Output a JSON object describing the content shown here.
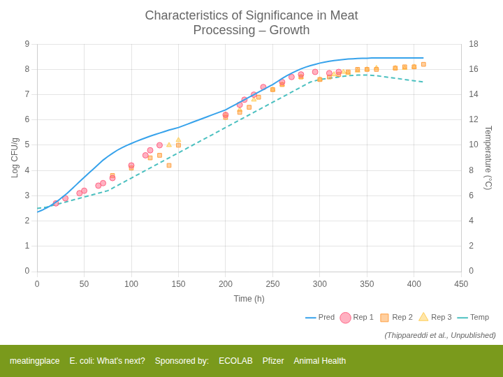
{
  "chart_data": {
    "type": "scatter",
    "title": [
      "Characteristics of Significance in Meat",
      "Processing – Growth"
    ],
    "subtitle": "(Thippareddi et al., Unpublished)",
    "annotations": [
      "meatingplace",
      "E. coli: What's next?",
      "Sponsored by:",
      "ECOLAB",
      "Pfizer",
      "Animal Health"
    ],
    "x_label": "Time (h)",
    "y_label": "Log CFU/g",
    "y2_label": "Temperature (°C)",
    "xlim": [
      0,
      450
    ],
    "xticks": [
      0,
      50,
      100,
      150,
      200,
      250,
      300,
      350,
      400,
      450
    ],
    "ylim": [
      0,
      9
    ],
    "yticks": [
      0,
      1,
      2,
      3,
      4,
      5,
      6,
      7,
      8,
      9
    ],
    "y2lim": [
      0,
      18
    ],
    "y2ticks": [
      0,
      2,
      4,
      6,
      8,
      10,
      12,
      14,
      16,
      18
    ],
    "grid": true,
    "legend": "lower right",
    "series": [
      {
        "name": "Pred",
        "type": "line",
        "line_style": "solid",
        "x": [
          0,
          2,
          4,
          6,
          8,
          10,
          12,
          14,
          16,
          18,
          20,
          22,
          24,
          26,
          28,
          30,
          32,
          34,
          36,
          38,
          40,
          42,
          44,
          46,
          48,
          50,
          55,
          60,
          65,
          70,
          75,
          80,
          85,
          90,
          95,
          100,
          105,
          110,
          115,
          120,
          125,
          130,
          135,
          140,
          145,
          150,
          155,
          160,
          165,
          170,
          175,
          180,
          185,
          190,
          195,
          200,
          205,
          210,
          215,
          220,
          225,
          230,
          235,
          240,
          245,
          250,
          255,
          260,
          265,
          270,
          275,
          280,
          285,
          290,
          295,
          300,
          305,
          310,
          315,
          320,
          325,
          330,
          335,
          340,
          345,
          350,
          355,
          360,
          365,
          370,
          375,
          380,
          385,
          390,
          395,
          400,
          405,
          410
        ],
        "values": [
          2.35,
          2.38,
          2.41,
          2.44,
          2.48,
          2.52,
          2.56,
          2.6,
          2.65,
          2.7,
          2.75,
          2.8,
          2.86,
          2.92,
          2.98,
          3.04,
          3.1,
          3.17,
          3.24,
          3.31,
          3.38,
          3.45,
          3.52,
          3.59,
          3.66,
          3.73,
          3.9,
          4.07,
          4.24,
          4.41,
          4.55,
          4.68,
          4.8,
          4.9,
          4.99,
          5.07,
          5.15,
          5.22,
          5.29,
          5.36,
          5.42,
          5.48,
          5.54,
          5.6,
          5.65,
          5.7,
          5.77,
          5.84,
          5.91,
          5.98,
          6.05,
          6.12,
          6.19,
          6.26,
          6.33,
          6.4,
          6.5,
          6.6,
          6.7,
          6.8,
          6.9,
          7.0,
          7.1,
          7.2,
          7.3,
          7.4,
          7.52,
          7.64,
          7.75,
          7.85,
          7.94,
          8.02,
          8.09,
          8.15,
          8.2,
          8.25,
          8.29,
          8.32,
          8.35,
          8.37,
          8.39,
          8.41,
          8.42,
          8.43,
          8.44,
          8.44,
          8.45,
          8.45,
          8.45,
          8.45,
          8.45,
          8.45,
          8.45,
          8.45,
          8.45,
          8.45,
          8.45,
          8.45
        ]
      },
      {
        "name": "Rep 1",
        "type": "scatter",
        "marker": "circle",
        "x": [
          20,
          30,
          45,
          50,
          65,
          70,
          80,
          100,
          115,
          120,
          130,
          200,
          215,
          220,
          230,
          240,
          260,
          270,
          280,
          295,
          310,
          320
        ],
        "values": [
          2.7,
          2.9,
          3.1,
          3.2,
          3.4,
          3.5,
          3.7,
          4.2,
          4.6,
          4.8,
          5.0,
          6.2,
          6.6,
          6.8,
          7.0,
          7.3,
          7.5,
          7.7,
          7.8,
          7.9,
          7.85,
          7.9
        ]
      },
      {
        "name": "Rep 2",
        "type": "scatter",
        "marker": "square",
        "x": [
          80,
          100,
          120,
          130,
          140,
          150,
          200,
          215,
          225,
          235,
          250,
          260,
          280,
          300,
          310,
          320,
          330,
          340,
          350,
          360,
          380,
          390,
          400,
          410
        ],
        "values": [
          3.8,
          4.1,
          4.5,
          4.6,
          4.2,
          5.0,
          6.1,
          6.3,
          6.5,
          6.9,
          7.2,
          7.4,
          7.7,
          7.6,
          7.7,
          7.8,
          7.9,
          8.0,
          8.0,
          8.0,
          8.05,
          8.1,
          8.1,
          8.2
        ]
      },
      {
        "name": "Rep 3",
        "type": "scatter",
        "marker": "triangle",
        "x": [
          140,
          150,
          200,
          215,
          230,
          250,
          260,
          280,
          300,
          315,
          325,
          330,
          340,
          350,
          360,
          380,
          390,
          400
        ],
        "values": [
          5.0,
          5.2,
          6.2,
          6.4,
          6.8,
          7.2,
          7.4,
          7.7,
          7.6,
          7.8,
          7.9,
          7.85,
          7.95,
          8.0,
          8.05,
          8.05,
          8.05,
          8.1
        ]
      },
      {
        "name": "Temp",
        "type": "line",
        "line_style": "dashed",
        "axis": "y2",
        "x": [
          0,
          5,
          10,
          15,
          20,
          25,
          30,
          35,
          40,
          45,
          50,
          55,
          60,
          65,
          70,
          75,
          80,
          85,
          90,
          95,
          100,
          105,
          110,
          115,
          120,
          125,
          130,
          135,
          140,
          145,
          150,
          155,
          160,
          165,
          170,
          175,
          180,
          185,
          190,
          195,
          200,
          210,
          220,
          230,
          240,
          250,
          260,
          270,
          280,
          290,
          300,
          310,
          320,
          330,
          340,
          350,
          360,
          370,
          380,
          390,
          400,
          410
        ],
        "values": [
          5.0,
          5.05,
          5.1,
          5.2,
          5.3,
          5.4,
          5.5,
          5.6,
          5.7,
          5.8,
          5.9,
          6.0,
          6.1,
          6.2,
          6.3,
          6.4,
          6.6,
          6.8,
          7.0,
          7.2,
          7.4,
          7.6,
          7.8,
          8.0,
          8.2,
          8.4,
          8.6,
          8.8,
          9.0,
          9.2,
          9.4,
          9.6,
          9.8,
          10.0,
          10.2,
          10.4,
          10.6,
          10.8,
          11.0,
          11.2,
          11.4,
          11.8,
          12.2,
          12.6,
          13.0,
          13.4,
          13.8,
          14.2,
          14.6,
          15.0,
          15.2,
          15.3,
          15.4,
          15.5,
          15.55,
          15.55,
          15.5,
          15.4,
          15.3,
          15.2,
          15.1,
          15.0
        ]
      }
    ]
  }
}
